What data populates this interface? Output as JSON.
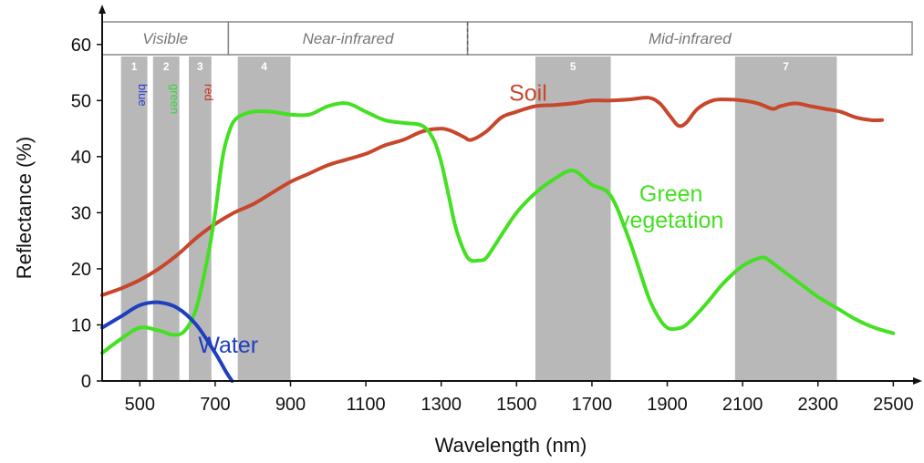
{
  "chart_data": {
    "type": "line",
    "xlabel": "Wavelength (nm)",
    "ylabel": "Reflectance (%)",
    "xlim": [
      400,
      2550
    ],
    "ylim": [
      0,
      65
    ],
    "x_ticks": [
      "500",
      "700",
      "900",
      "1100",
      "1300",
      "1500",
      "1700",
      "1900",
      "2100",
      "2300",
      "2500"
    ],
    "y_ticks": [
      "0",
      "10",
      "20",
      "30",
      "40",
      "50",
      "60"
    ],
    "grid": false,
    "regions": [
      {
        "label": "Visible",
        "x0": 400,
        "x1": 735
      },
      {
        "label": "Near-infrared",
        "x0": 735,
        "x1": 1370
      },
      {
        "label": "Mid-infrared",
        "x0": 1370,
        "x1": 2550
      }
    ],
    "bands": [
      {
        "label": "1",
        "x0": 450,
        "x1": 520
      },
      {
        "label": "2",
        "x0": 535,
        "x1": 605
      },
      {
        "label": "3",
        "x0": 630,
        "x1": 690
      },
      {
        "label": "4",
        "x0": 760,
        "x1": 900
      },
      {
        "label": "5",
        "x0": 1550,
        "x1": 1750
      },
      {
        "label": "7",
        "x0": 2080,
        "x1": 2350
      }
    ],
    "band_color_labels": [
      {
        "text": "blue",
        "x": 485,
        "color": "#2a3fd0"
      },
      {
        "text": "green",
        "x": 570,
        "color": "#3dd43d"
      },
      {
        "text": "red",
        "x": 660,
        "color": "#d0311f"
      }
    ],
    "series": [
      {
        "name": "Soil",
        "color": "#c8462b",
        "label_at": [
          1480,
          50
        ],
        "x": [
          400,
          450,
          500,
          550,
          600,
          650,
          700,
          750,
          800,
          850,
          900,
          950,
          1000,
          1050,
          1100,
          1150,
          1200,
          1250,
          1300,
          1330,
          1360,
          1380,
          1420,
          1460,
          1500,
          1550,
          1600,
          1650,
          1700,
          1750,
          1800,
          1850,
          1880,
          1910,
          1930,
          1950,
          1980,
          2020,
          2060,
          2100,
          2140,
          2180,
          2200,
          2240,
          2280,
          2320,
          2360,
          2400,
          2440,
          2470
        ],
        "y": [
          15.3,
          16.5,
          18,
          20,
          22.5,
          25.5,
          28,
          30,
          31.5,
          33.5,
          35.5,
          37,
          38.5,
          39.5,
          40.5,
          42,
          43,
          44.5,
          45,
          44.5,
          43.5,
          43,
          44.5,
          47,
          48,
          49,
          49.2,
          49.5,
          50,
          50,
          50.2,
          50.5,
          49.5,
          47,
          45.5,
          46,
          48.5,
          50,
          50.2,
          50,
          49.5,
          48.5,
          49,
          49.5,
          49,
          48.5,
          48,
          47,
          46.5,
          46.5
        ]
      },
      {
        "name": "Green vegetation",
        "color": "#44e022",
        "label_at": [
          1910,
          32
        ],
        "x": [
          400,
          450,
          500,
          550,
          590,
          620,
          650,
          680,
          700,
          720,
          740,
          760,
          800,
          850,
          900,
          950,
          1000,
          1050,
          1100,
          1150,
          1200,
          1250,
          1280,
          1300,
          1320,
          1340,
          1370,
          1400,
          1420,
          1450,
          1500,
          1550,
          1600,
          1650,
          1700,
          1750,
          1800,
          1850,
          1880,
          1900,
          1920,
          1950,
          2000,
          2050,
          2100,
          2150,
          2170,
          2200,
          2250,
          2300,
          2350,
          2400,
          2450,
          2500
        ],
        "y": [
          5,
          7.5,
          9.5,
          9,
          8.2,
          9,
          13,
          22,
          30,
          40,
          45,
          47,
          48,
          48,
          47.5,
          47.5,
          49,
          49.5,
          48,
          46.5,
          46,
          45.5,
          43,
          39,
          33,
          27,
          22,
          21.5,
          22,
          25,
          30,
          33.5,
          36,
          37.5,
          35,
          33,
          25,
          15,
          11,
          9.5,
          9.3,
          10,
          13.5,
          17.5,
          20.5,
          22,
          21.5,
          20,
          17.5,
          15,
          13,
          11,
          9.5,
          8.5
        ]
      },
      {
        "name": "Water",
        "color": "#1f3fbf",
        "label_at": [
          655,
          5
        ],
        "x": [
          400,
          450,
          500,
          550,
          600,
          650,
          700,
          730,
          745
        ],
        "y": [
          9.5,
          11.5,
          13.5,
          14,
          13,
          10,
          5,
          1.5,
          0
        ]
      }
    ]
  }
}
